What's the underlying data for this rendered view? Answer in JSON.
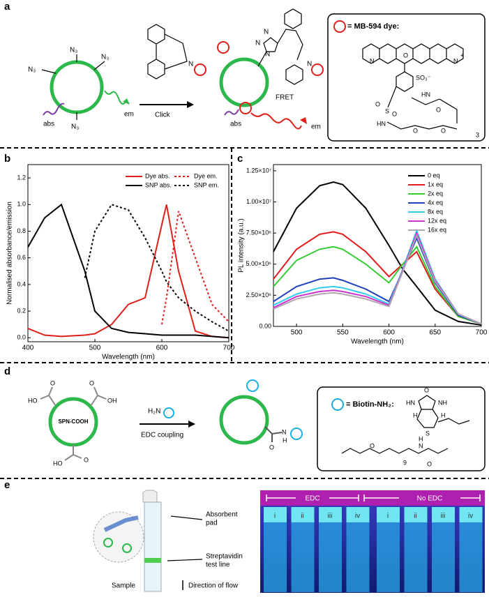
{
  "panel_labels": [
    "a",
    "b",
    "c",
    "d",
    "e"
  ],
  "panel_a": {
    "azides": [
      "N₃",
      "N₃",
      "N₃",
      "N₃"
    ],
    "abs": "abs",
    "em": "em",
    "alkyne_atom": "N",
    "arrow_label": "Click",
    "product_atoms": [
      "N",
      "N",
      "N",
      "N"
    ],
    "fret": "FRET",
    "abs_2": "abs",
    "em_2": "em",
    "box_title": "= MB-594 dye:",
    "dye_atoms": [
      "N",
      "O",
      "N",
      "+",
      "SO₃⁻",
      "S",
      "O",
      "O",
      "HN",
      "HN",
      "O",
      "O",
      "O",
      "3"
    ]
  },
  "panel_d": {
    "reactant_atoms": [
      "HO",
      "O",
      "O",
      "OH",
      "O",
      "HO"
    ],
    "reactant_label": "SPN-COOH",
    "reagent": "H₂N",
    "arrow_label": "EDC coupling",
    "product_atoms": [
      "O",
      "N",
      "H"
    ],
    "box_title": "= Biotin-NH₂:",
    "biotin_atoms": [
      "O",
      "HN",
      "NH",
      "H",
      "H",
      "S",
      "O",
      "N",
      "H",
      "O",
      "9"
    ]
  },
  "panel_e": {
    "absorbent_pad": [
      "Absorbent",
      "pad"
    ],
    "test_line": [
      "Streptavidin",
      "test line"
    ],
    "sample": "Sample",
    "direction": "Direction of flow",
    "groups": [
      "EDC",
      "No EDC"
    ],
    "lanes": [
      "i",
      "ii",
      "iii",
      "iv",
      "i",
      "ii",
      "iii",
      "iv"
    ]
  },
  "chart_data": [
    {
      "type": "line",
      "xlabel": "Wavelength (nm)",
      "ylabel": "Normalised absorbance/emission",
      "x": [
        400,
        425,
        450,
        485,
        500,
        525,
        550,
        575,
        600,
        607,
        625,
        650,
        675,
        700
      ],
      "xlim": [
        400,
        700
      ],
      "xticks": [
        400,
        500,
        600,
        700
      ],
      "ylim": [
        -0.03,
        1.3
      ],
      "yticks": [
        {
          "value": 0,
          "label": "0.0"
        },
        0.2,
        0.4,
        0.6,
        0.8,
        {
          "value": 1,
          "label": "1.0"
        },
        1.2
      ],
      "series": [
        {
          "name": "Dye abs.",
          "color": "#e0201b",
          "line_style": "solid",
          "values": [
            0.07,
            0.02,
            0.01,
            0.02,
            0.03,
            0.1,
            0.25,
            0.3,
            0.85,
            1.0,
            0.5,
            0.05,
            0.01,
            0.0
          ]
        },
        {
          "name": "Dye em.",
          "color": "#e0201b",
          "line_style": "dotted",
          "values": [
            null,
            null,
            null,
            null,
            null,
            null,
            null,
            null,
            0.1,
            0.3,
            0.95,
            0.6,
            0.25,
            0.12
          ]
        },
        {
          "name": "SNP abs.",
          "color": "#000000",
          "line_style": "solid",
          "values": [
            0.68,
            0.9,
            1.0,
            0.5,
            0.2,
            0.07,
            0.04,
            0.03,
            0.02,
            0.02,
            0.02,
            0.02,
            0.01,
            0.0
          ]
        },
        {
          "name": "SNP em.",
          "color": "#000000",
          "line_style": "dotted",
          "values": [
            null,
            null,
            null,
            0.45,
            0.8,
            1.0,
            0.96,
            0.75,
            0.5,
            0.42,
            0.3,
            0.2,
            0.12,
            0.05
          ]
        }
      ],
      "legend": "upper right"
    },
    {
      "type": "line",
      "xlabel": "Wavelength (nm)",
      "ylabel": "PL intensity (a.u.)",
      "x": [
        475,
        500,
        525,
        540,
        550,
        575,
        600,
        615,
        630,
        650,
        675,
        700
      ],
      "xlim": [
        475,
        700
      ],
      "xticks": [
        500,
        550,
        600,
        650,
        700
      ],
      "ylim": [
        0,
        13000000
      ],
      "yticks": [
        {
          "value": 0,
          "label": "0.00"
        },
        {
          "value": 2500000,
          "label": "2.50×10⁶"
        },
        {
          "value": 5000000,
          "label": "5.00×10⁶"
        },
        {
          "value": 7500000,
          "label": "7.50×10⁶"
        },
        {
          "value": 10000000,
          "label": "1.00×10⁷"
        },
        {
          "value": 12500000,
          "label": "1.25×10⁷"
        }
      ],
      "series": [
        {
          "name": "0 eq",
          "color": "#000000",
          "values": [
            6000000,
            9500000,
            11300000,
            11600000,
            11400000,
            9500000,
            6500000,
            4600000,
            3200000,
            1300000,
            400000,
            100000
          ]
        },
        {
          "name": "1x eq",
          "color": "#e31a1c",
          "values": [
            3800000,
            6200000,
            7400000,
            7600000,
            7400000,
            6000000,
            4000000,
            5000000,
            6000000,
            3000000,
            800000,
            200000
          ]
        },
        {
          "name": "2x eq",
          "color": "#33cc33",
          "values": [
            3200000,
            5300000,
            6200000,
            6400000,
            6200000,
            5000000,
            3500000,
            5000000,
            6400000,
            3200000,
            800000,
            200000
          ]
        },
        {
          "name": "4x eq",
          "color": "#1f3fbf",
          "values": [
            2000000,
            3200000,
            3800000,
            3900000,
            3700000,
            3000000,
            2000000,
            4500000,
            7100000,
            3500000,
            900000,
            200000
          ]
        },
        {
          "name": "8x eq",
          "color": "#33ccee",
          "values": [
            1700000,
            2600000,
            3100000,
            3200000,
            3100000,
            2600000,
            1800000,
            4600000,
            7700000,
            3800000,
            1000000,
            200000
          ]
        },
        {
          "name": "12x eq",
          "color": "#cc33cc",
          "values": [
            1500000,
            2400000,
            2800000,
            2900000,
            2800000,
            2400000,
            1700000,
            4500000,
            7500000,
            3700000,
            1000000,
            200000
          ]
        },
        {
          "name": "16x eq",
          "color": "#b0a8b0",
          "values": [
            1400000,
            2200000,
            2600000,
            2700000,
            2600000,
            2200000,
            1600000,
            4400000,
            7300000,
            3600000,
            1000000,
            200000
          ]
        }
      ],
      "legend": "upper right"
    }
  ]
}
